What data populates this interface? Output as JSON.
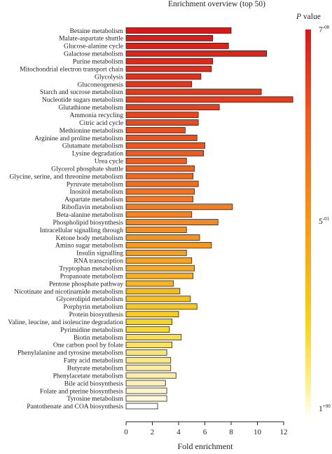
{
  "chart_data": {
    "type": "bar",
    "orientation": "horizontal",
    "title": "Enrichment overview (top 50)",
    "xlabel": "Fold enrichment",
    "ylabel": "",
    "xlim": [
      0,
      12
    ],
    "xticks": [
      0,
      2,
      4,
      6,
      8,
      10,
      12
    ],
    "legend": {
      "title_italic": "P",
      "title_rest": " value",
      "top_base": "7",
      "top_exp": "-08",
      "mid_base": "5",
      "mid_exp": "-01",
      "bottom_base": "1",
      "bottom_exp": "+00",
      "placement": "right",
      "colors": [
        "#d7191c",
        "#ee5a1f",
        "#f59a1c",
        "#f7d21a",
        "#fdf29a",
        "#ffffff"
      ]
    },
    "categories": [
      "Betaine metabolism",
      "Malate-aspartate shuttle",
      "Glucose-alanine cycle",
      "Galactose metabolism",
      "Purine metabolism",
      "Mitochondrial electron transport chain",
      "Glycolysis",
      "Gluconeogenesis",
      "Starch and sucrose metabolism",
      "Nucleotide sugars metabolism",
      "Glutathione metabolism",
      "Ammonia recycling",
      "Citric acid cycle",
      "Methionine metabolism",
      "Arginine and proline metabolism",
      "Glutamate metabolism",
      "Lysine degradation",
      "Urea cycle",
      "Glycerol phosphate shuttle",
      "Glycine, serine, and threonine metabolism",
      "Pyruvate metabolism",
      "Inositol metabolism",
      "Aspartate metabolism",
      "Riboflavin metabolism",
      "Beta-alanine metabolism",
      "Phospholipid biosynthesis",
      "Intracellular signalling through",
      "Ketone body metabolism",
      "Amino sugar metabolism",
      "Insulin signalling",
      "RNA transcription",
      "Tryptophan metabolism",
      "Propanoate metabolism",
      "Pentose phosphate pathway",
      "Nicotinate and nicotinamide metabolism",
      "Glycerolipid metabolism",
      "Porphyrin metabolism",
      "Protein biosynthesis",
      "Valine, leucine, and isoleucine degradation",
      "Pyrimidine metabolism",
      "Biotin metabolism",
      "One carbon pool by folate",
      "Phenylalanine and tyrosine metabolism",
      "Fatty acid metabolism",
      "Butyrate metabolism",
      "Phenylacetate metabolism",
      "Bile acid biosynthesis",
      "Folate and pterine biosynthesis",
      "Tyrosine metabolism",
      "Pantothenate and COA biosynthesis"
    ],
    "values": [
      8.0,
      6.6,
      7.8,
      10.7,
      6.6,
      6.5,
      5.7,
      5.0,
      10.3,
      12.7,
      7.1,
      5.5,
      5.5,
      4.5,
      5.4,
      6.0,
      5.9,
      4.6,
      5.2,
      5.1,
      5.5,
      5.2,
      5.1,
      8.1,
      5.0,
      7.0,
      4.6,
      5.6,
      6.5,
      4.6,
      5.0,
      5.2,
      5.1,
      3.6,
      4.1,
      4.9,
      5.4,
      4.0,
      3.5,
      3.3,
      4.2,
      3.5,
      3.1,
      3.4,
      3.4,
      3.8,
      3.0,
      3.1,
      3.1,
      2.4
    ],
    "colors": [
      "#d7191c",
      "#d91d1c",
      "#da221c",
      "#db261c",
      "#dd2a1d",
      "#de2e1d",
      "#df321d",
      "#e1361d",
      "#e23a1d",
      "#e33e1d",
      "#e4421e",
      "#e6471e",
      "#e74b1e",
      "#e84f1e",
      "#ea531e",
      "#eb571f",
      "#ec5b1f",
      "#ee5f1f",
      "#ef631f",
      "#f06820",
      "#f16d20",
      "#f27220",
      "#f37821",
      "#f37d21",
      "#f48321",
      "#f48822",
      "#f58e22",
      "#f59322",
      "#f59822",
      "#f69e22",
      "#f6a422",
      "#f6aa22",
      "#f6b022",
      "#f7b522",
      "#f7bb22",
      "#f7c122",
      "#f7c722",
      "#f7cc22",
      "#f7d22a",
      "#f8d73c",
      "#f9dc50",
      "#f9e064",
      "#fae478",
      "#fae88a",
      "#fbeb9c",
      "#fbeeac",
      "#fcf0bb",
      "#fdf4cc",
      "#fef8dd",
      "#ffffff"
    ]
  }
}
